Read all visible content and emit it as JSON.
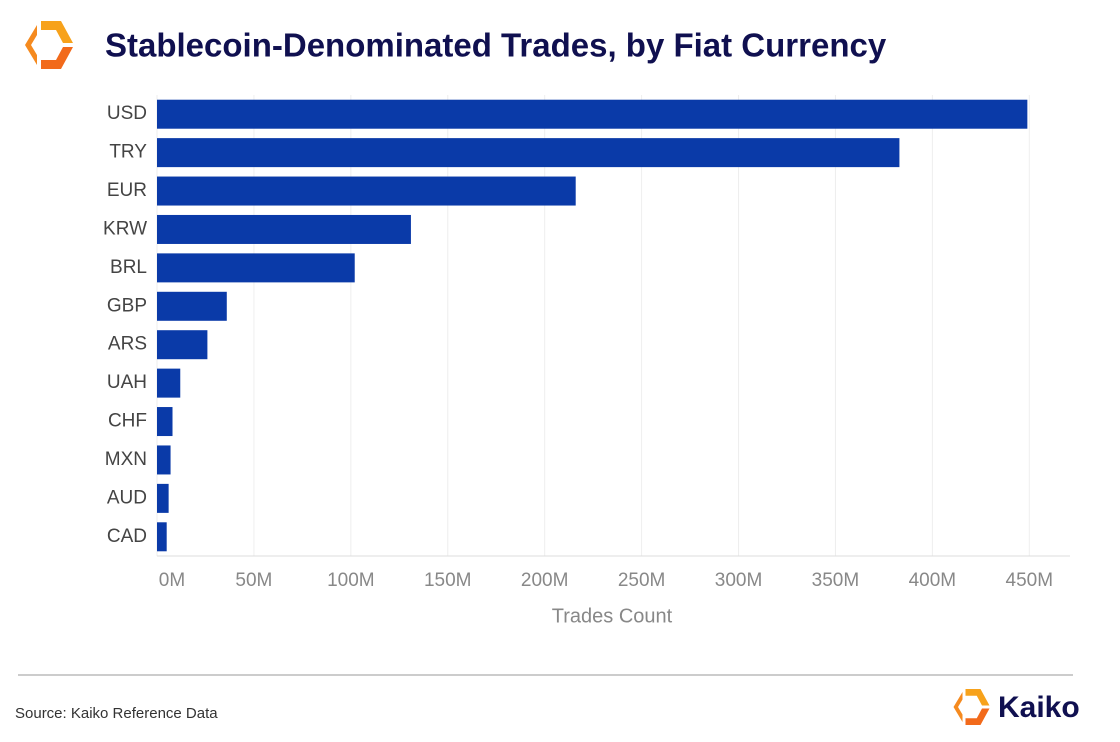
{
  "chart_data": {
    "type": "bar",
    "orientation": "horizontal",
    "title": "Stablecoin-Denominated Trades, by Fiat Currency",
    "x_label": "Trades Count",
    "source": "Source: Kaiko Reference Data",
    "brand": "Kaiko",
    "categories": [
      "USD",
      "TRY",
      "EUR",
      "KRW",
      "BRL",
      "GBP",
      "ARS",
      "UAH",
      "CHF",
      "MXN",
      "AUD",
      "CAD"
    ],
    "values": [
      449000000,
      383000000,
      216000000,
      131000000,
      102000000,
      36000000,
      26000000,
      12000000,
      8000000,
      7000000,
      6000000,
      5000000
    ],
    "color": "#0a3aa8",
    "xlim": [
      0,
      471000000
    ],
    "xticks": [
      {
        "value": 0,
        "label": "0M"
      },
      {
        "value": 50000000,
        "label": "50M"
      },
      {
        "value": 100000000,
        "label": "100M"
      },
      {
        "value": 150000000,
        "label": "150M"
      },
      {
        "value": 200000000,
        "label": "200M"
      },
      {
        "value": 250000000,
        "label": "250M"
      },
      {
        "value": 300000000,
        "label": "300M"
      },
      {
        "value": 350000000,
        "label": "350M"
      },
      {
        "value": 400000000,
        "label": "400M"
      },
      {
        "value": 450000000,
        "label": "450M"
      }
    ],
    "grid": true
  }
}
